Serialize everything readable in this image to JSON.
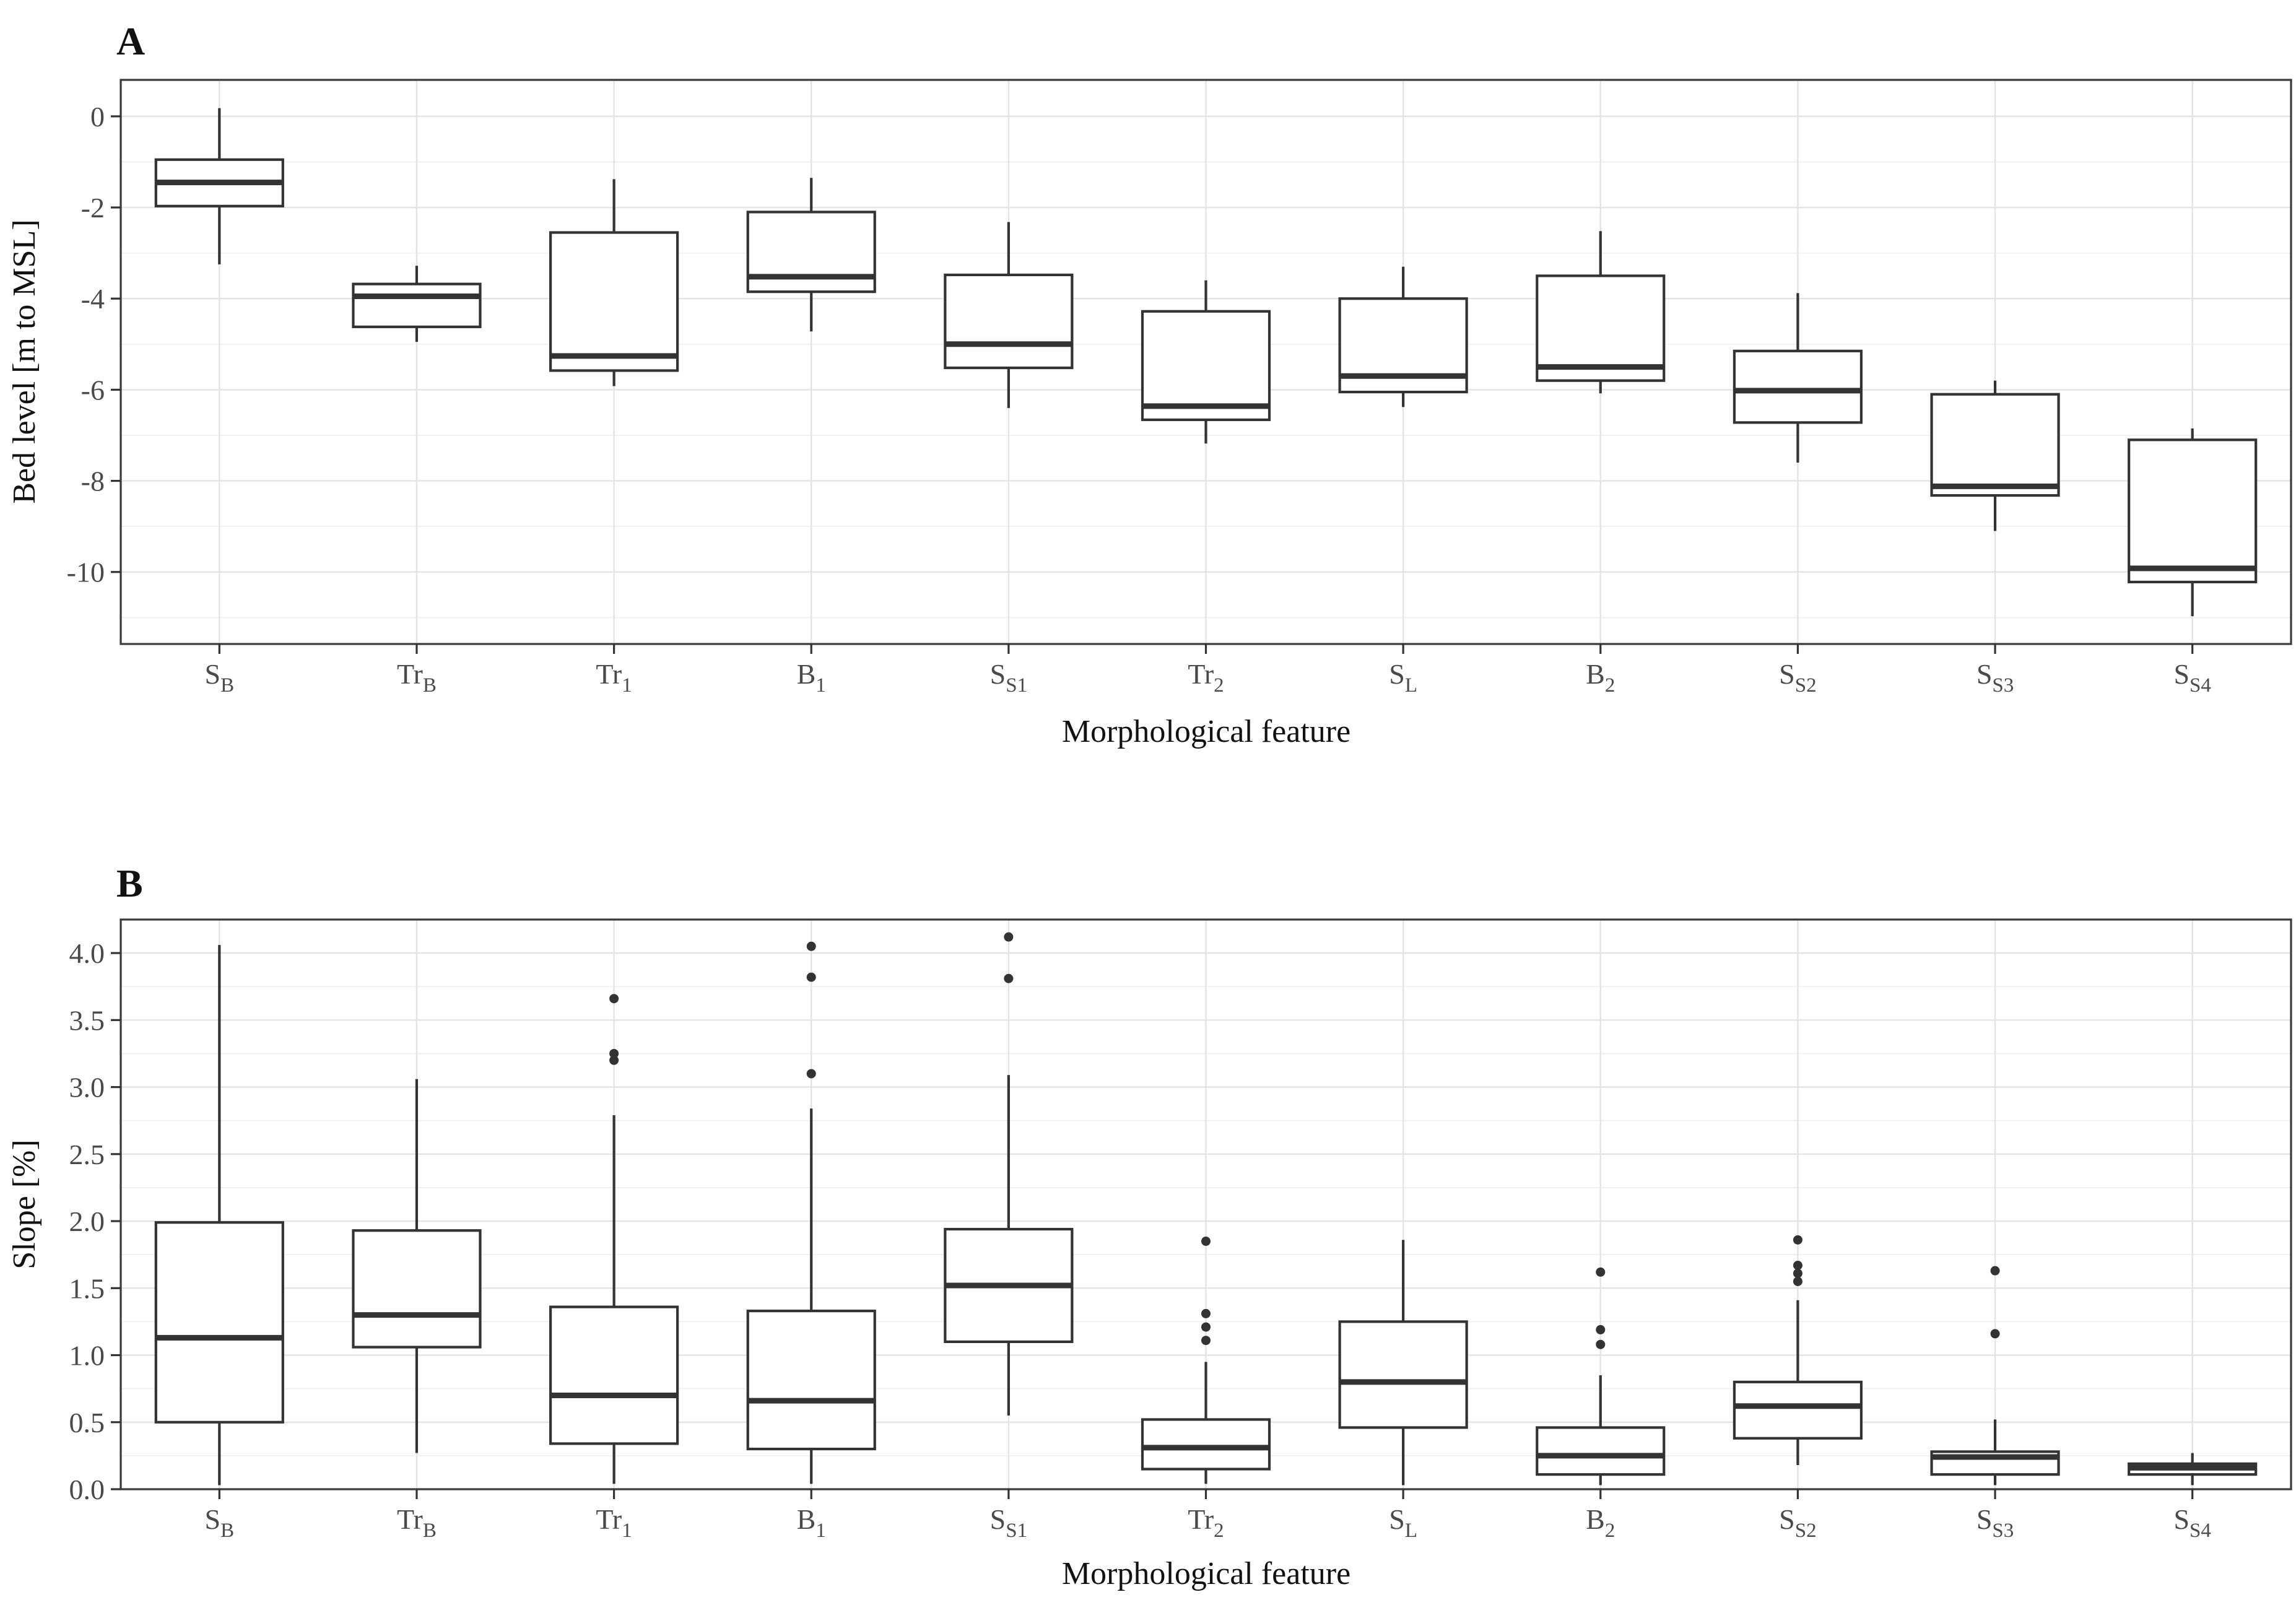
{
  "figure": {
    "background": "#ffffff",
    "panels": [
      {
        "letter": "A",
        "y_axis_title": "Bed level [m to MSL]",
        "x_axis_title": "Morphological feature"
      },
      {
        "letter": "B",
        "y_axis_title": "Slope [%]",
        "x_axis_title": "Morphological feature"
      }
    ]
  },
  "style": {
    "box_stroke": "#333333",
    "box_fill": "#ffffff",
    "outlier_fill": "#333333",
    "panel_border": "#3a3a3a",
    "grid_major": "#e4e4e4",
    "grid_minor": "#f0f0f0",
    "tick_color": "#333333",
    "tick_text_color": "#4a4a4a",
    "title_text_color": "#111111"
  },
  "chart_data": [
    {
      "type": "box",
      "panel": "A",
      "title": "A",
      "xlabel": "Morphological feature",
      "ylabel": "Bed level [m to MSL]",
      "ylim": [
        0.8,
        -11.58
      ],
      "grid": true,
      "legend": "none",
      "yticks": [
        {
          "value": 0,
          "label": "0"
        },
        {
          "value": -2,
          "label": "-2"
        },
        {
          "value": -4,
          "label": "-4"
        },
        {
          "value": -6,
          "label": "-6"
        },
        {
          "value": -8,
          "label": "-8"
        },
        {
          "value": -10,
          "label": "-10"
        }
      ],
      "minor_step": 1,
      "categories": [
        {
          "id": "S_B",
          "base": "S",
          "sub": "B"
        },
        {
          "id": "Tr_B",
          "base": "Tr",
          "sub": "B"
        },
        {
          "id": "Tr_1",
          "base": "Tr",
          "sub": "1"
        },
        {
          "id": "B_1",
          "base": "B",
          "sub": "1"
        },
        {
          "id": "S_S1",
          "base": "S",
          "sub": "S1"
        },
        {
          "id": "Tr_2",
          "base": "Tr",
          "sub": "2"
        },
        {
          "id": "S_L",
          "base": "S",
          "sub": "L"
        },
        {
          "id": "B_2",
          "base": "B",
          "sub": "2"
        },
        {
          "id": "S_S2",
          "base": "S",
          "sub": "S2"
        },
        {
          "id": "S_S3",
          "base": "S",
          "sub": "S3"
        },
        {
          "id": "S_S4",
          "base": "S",
          "sub": "S4"
        }
      ],
      "boxes": [
        {
          "category": "S_B",
          "whisker_low": -3.25,
          "q1": -1.97,
          "median": -1.45,
          "q3": -0.95,
          "whisker_high": 0.18,
          "outliers": []
        },
        {
          "category": "Tr_B",
          "whisker_low": -4.95,
          "q1": -4.62,
          "median": -3.95,
          "q3": -3.68,
          "whisker_high": -3.28,
          "outliers": []
        },
        {
          "category": "Tr_1",
          "whisker_low": -5.92,
          "q1": -5.58,
          "median": -5.26,
          "q3": -2.55,
          "whisker_high": -1.38,
          "outliers": []
        },
        {
          "category": "B_1",
          "whisker_low": -4.72,
          "q1": -3.85,
          "median": -3.52,
          "q3": -2.1,
          "whisker_high": -1.35,
          "outliers": []
        },
        {
          "category": "S_S1",
          "whisker_low": -6.4,
          "q1": -5.52,
          "median": -5.0,
          "q3": -3.48,
          "whisker_high": -2.32,
          "outliers": []
        },
        {
          "category": "Tr_2",
          "whisker_low": -7.18,
          "q1": -6.66,
          "median": -6.36,
          "q3": -4.28,
          "whisker_high": -3.6,
          "outliers": []
        },
        {
          "category": "S_L",
          "whisker_low": -6.38,
          "q1": -6.05,
          "median": -5.7,
          "q3": -4.0,
          "whisker_high": -3.3,
          "outliers": []
        },
        {
          "category": "B_2",
          "whisker_low": -6.08,
          "q1": -5.8,
          "median": -5.5,
          "q3": -3.5,
          "whisker_high": -2.52,
          "outliers": []
        },
        {
          "category": "S_S2",
          "whisker_low": -7.6,
          "q1": -6.72,
          "median": -6.02,
          "q3": -5.15,
          "whisker_high": -3.88,
          "outliers": []
        },
        {
          "category": "S_S3",
          "whisker_low": -9.1,
          "q1": -8.32,
          "median": -8.12,
          "q3": -6.1,
          "whisker_high": -5.8,
          "outliers": []
        },
        {
          "category": "S_S4",
          "whisker_low": -10.97,
          "q1": -10.22,
          "median": -9.92,
          "q3": -7.1,
          "whisker_high": -6.85,
          "outliers": []
        }
      ]
    },
    {
      "type": "box",
      "panel": "B",
      "title": "B",
      "xlabel": "Morphological feature",
      "ylabel": "Slope [%]",
      "ylim": [
        4.25,
        0.0
      ],
      "grid": true,
      "legend": "none",
      "yticks": [
        {
          "value": 4.0,
          "label": "4.0"
        },
        {
          "value": 3.5,
          "label": "3.5"
        },
        {
          "value": 3.0,
          "label": "3.0"
        },
        {
          "value": 2.5,
          "label": "2.5"
        },
        {
          "value": 2.0,
          "label": "2.0"
        },
        {
          "value": 1.5,
          "label": "1.5"
        },
        {
          "value": 1.0,
          "label": "1.0"
        },
        {
          "value": 0.5,
          "label": "0.5"
        },
        {
          "value": 0.0,
          "label": "0.0"
        }
      ],
      "minor_step": 0.25,
      "categories": [
        {
          "id": "S_B",
          "base": "S",
          "sub": "B"
        },
        {
          "id": "Tr_B",
          "base": "Tr",
          "sub": "B"
        },
        {
          "id": "Tr_1",
          "base": "Tr",
          "sub": "1"
        },
        {
          "id": "B_1",
          "base": "B",
          "sub": "1"
        },
        {
          "id": "S_S1",
          "base": "S",
          "sub": "S1"
        },
        {
          "id": "Tr_2",
          "base": "Tr",
          "sub": "2"
        },
        {
          "id": "S_L",
          "base": "S",
          "sub": "L"
        },
        {
          "id": "B_2",
          "base": "B",
          "sub": "2"
        },
        {
          "id": "S_S2",
          "base": "S",
          "sub": "S2"
        },
        {
          "id": "S_S3",
          "base": "S",
          "sub": "S3"
        },
        {
          "id": "S_S4",
          "base": "S",
          "sub": "S4"
        }
      ],
      "boxes": [
        {
          "category": "S_B",
          "whisker_low": 0.03,
          "q1": 0.5,
          "median": 1.13,
          "q3": 1.99,
          "whisker_high": 4.06,
          "outliers": []
        },
        {
          "category": "Tr_B",
          "whisker_low": 0.27,
          "q1": 1.06,
          "median": 1.3,
          "q3": 1.93,
          "whisker_high": 3.06,
          "outliers": []
        },
        {
          "category": "Tr_1",
          "whisker_low": 0.04,
          "q1": 0.34,
          "median": 0.7,
          "q3": 1.36,
          "whisker_high": 2.79,
          "outliers": [
            3.66,
            3.25,
            3.2
          ]
        },
        {
          "category": "B_1",
          "whisker_low": 0.04,
          "q1": 0.3,
          "median": 0.66,
          "q3": 1.33,
          "whisker_high": 2.84,
          "outliers": [
            4.05,
            3.82,
            3.1
          ]
        },
        {
          "category": "S_S1",
          "whisker_low": 0.55,
          "q1": 1.1,
          "median": 1.52,
          "q3": 1.94,
          "whisker_high": 3.09,
          "outliers": [
            4.12,
            3.81
          ]
        },
        {
          "category": "Tr_2",
          "whisker_low": 0.04,
          "q1": 0.15,
          "median": 0.31,
          "q3": 0.52,
          "whisker_high": 0.95,
          "outliers": [
            1.85,
            1.31,
            1.21,
            1.11
          ]
        },
        {
          "category": "S_L",
          "whisker_low": 0.03,
          "q1": 0.46,
          "median": 0.8,
          "q3": 1.25,
          "whisker_high": 1.86,
          "outliers": []
        },
        {
          "category": "B_2",
          "whisker_low": 0.03,
          "q1": 0.11,
          "median": 0.25,
          "q3": 0.46,
          "whisker_high": 0.85,
          "outliers": [
            1.62,
            1.19,
            1.08
          ]
        },
        {
          "category": "S_S2",
          "whisker_low": 0.18,
          "q1": 0.38,
          "median": 0.62,
          "q3": 0.8,
          "whisker_high": 1.41,
          "outliers": [
            1.86,
            1.67,
            1.61,
            1.55
          ]
        },
        {
          "category": "S_S3",
          "whisker_low": 0.03,
          "q1": 0.11,
          "median": 0.24,
          "q3": 0.28,
          "whisker_high": 0.52,
          "outliers": [
            1.63,
            1.16
          ]
        },
        {
          "category": "S_S4",
          "whisker_low": 0.03,
          "q1": 0.11,
          "median": 0.16,
          "q3": 0.19,
          "whisker_high": 0.27,
          "outliers": []
        }
      ]
    }
  ]
}
